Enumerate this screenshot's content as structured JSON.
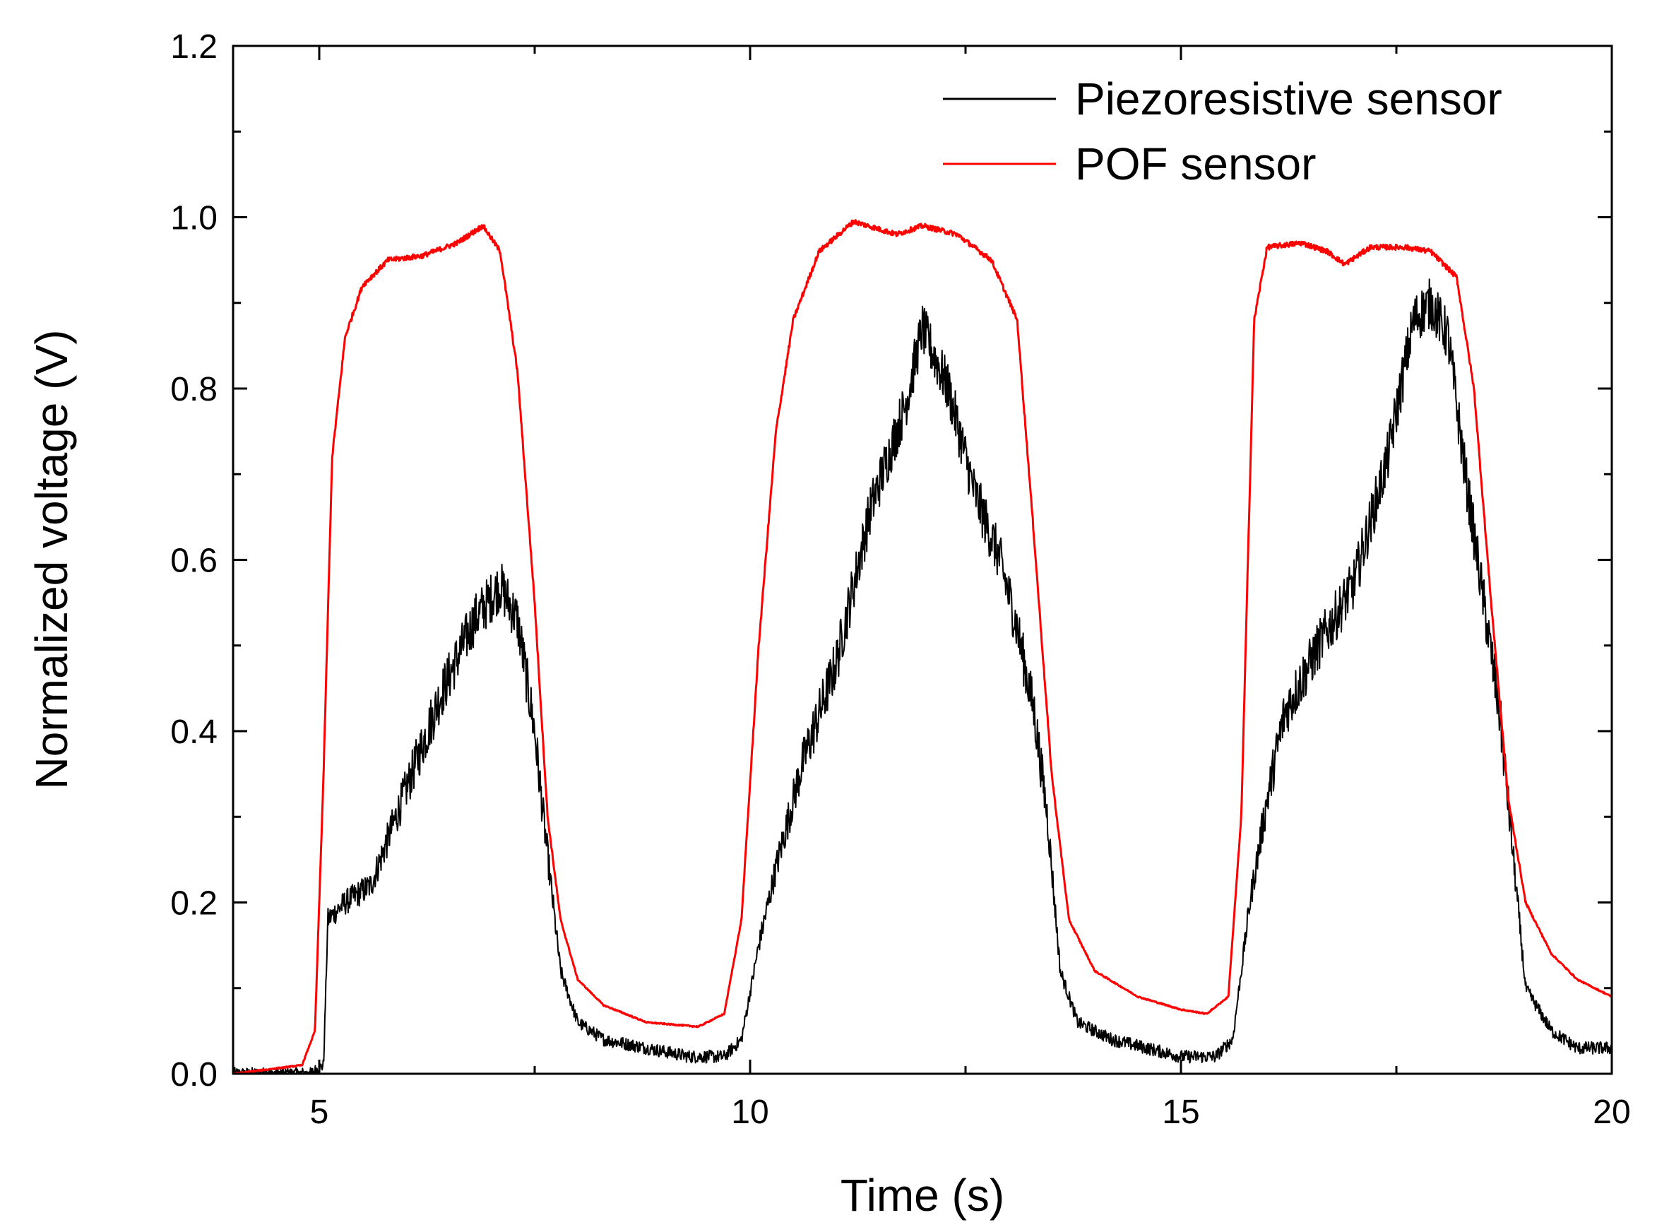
{
  "chart_data": {
    "type": "line",
    "title": "",
    "xlabel": "Time (s)",
    "ylabel": "Normalized voltage (V)",
    "xlim": [
      4,
      20
    ],
    "ylim": [
      0.0,
      1.2
    ],
    "xticks": [
      5,
      10,
      15,
      20
    ],
    "xtick_labels": [
      "5",
      "10",
      "15",
      "20"
    ],
    "yticks": [
      0.0,
      0.2,
      0.4,
      0.6,
      0.8,
      1.0,
      1.2
    ],
    "ytick_labels": [
      "0.0",
      "0.2",
      "0.4",
      "0.6",
      "0.8",
      "1.0",
      "1.2"
    ],
    "grid": false,
    "legend_position": "top-right",
    "series": [
      {
        "name": "Piezoresistive sensor",
        "color": "#000000",
        "noise_amplitude": 0.03,
        "x": [
          4.0,
          4.9,
          5.05,
          5.1,
          5.3,
          5.6,
          6.0,
          6.4,
          6.8,
          7.1,
          7.3,
          7.5,
          7.6,
          7.8,
          8.0,
          8.3,
          8.8,
          9.3,
          9.7,
          9.9,
          10.1,
          10.3,
          10.6,
          11.0,
          11.4,
          11.8,
          12.0,
          12.3,
          12.6,
          12.9,
          13.1,
          13.3,
          13.45,
          13.6,
          13.8,
          14.2,
          14.6,
          15.0,
          15.4,
          15.6,
          15.8,
          16.0,
          16.2,
          16.6,
          17.0,
          17.4,
          17.7,
          17.9,
          18.1,
          18.3,
          18.5,
          18.7,
          18.85,
          19.0,
          19.3,
          19.6,
          20.0
        ],
        "y": [
          0.0,
          0.0,
          0.01,
          0.18,
          0.2,
          0.22,
          0.33,
          0.44,
          0.53,
          0.57,
          0.53,
          0.4,
          0.3,
          0.12,
          0.06,
          0.04,
          0.03,
          0.02,
          0.02,
          0.04,
          0.15,
          0.24,
          0.36,
          0.48,
          0.66,
          0.78,
          0.87,
          0.8,
          0.68,
          0.6,
          0.52,
          0.42,
          0.3,
          0.12,
          0.06,
          0.04,
          0.03,
          0.02,
          0.02,
          0.04,
          0.2,
          0.32,
          0.42,
          0.5,
          0.57,
          0.72,
          0.88,
          0.9,
          0.86,
          0.7,
          0.56,
          0.42,
          0.26,
          0.1,
          0.05,
          0.03,
          0.03
        ]
      },
      {
        "name": "POF sensor",
        "color": "#ff0000",
        "noise_amplitude": 0.003,
        "x": [
          4.0,
          4.8,
          4.95,
          5.05,
          5.15,
          5.3,
          5.5,
          5.8,
          6.2,
          6.6,
          6.9,
          7.1,
          7.3,
          7.5,
          7.65,
          7.8,
          8.0,
          8.3,
          8.8,
          9.4,
          9.7,
          9.9,
          10.1,
          10.3,
          10.5,
          10.8,
          11.2,
          11.7,
          12.0,
          12.4,
          12.8,
          13.1,
          13.3,
          13.5,
          13.7,
          14.0,
          14.5,
          15.0,
          15.3,
          15.55,
          15.7,
          15.85,
          16.0,
          16.4,
          16.7,
          16.9,
          17.2,
          17.6,
          17.9,
          18.2,
          18.4,
          18.6,
          18.8,
          19.0,
          19.3,
          19.6,
          20.0
        ],
        "y": [
          0.0,
          0.01,
          0.05,
          0.35,
          0.72,
          0.86,
          0.92,
          0.95,
          0.955,
          0.97,
          0.99,
          0.96,
          0.82,
          0.55,
          0.3,
          0.18,
          0.11,
          0.08,
          0.06,
          0.055,
          0.07,
          0.18,
          0.5,
          0.75,
          0.88,
          0.96,
          0.995,
          0.98,
          0.99,
          0.98,
          0.95,
          0.88,
          0.62,
          0.35,
          0.18,
          0.12,
          0.09,
          0.075,
          0.07,
          0.09,
          0.3,
          0.88,
          0.965,
          0.97,
          0.96,
          0.945,
          0.965,
          0.965,
          0.96,
          0.93,
          0.8,
          0.55,
          0.32,
          0.2,
          0.14,
          0.11,
          0.09
        ]
      }
    ]
  }
}
